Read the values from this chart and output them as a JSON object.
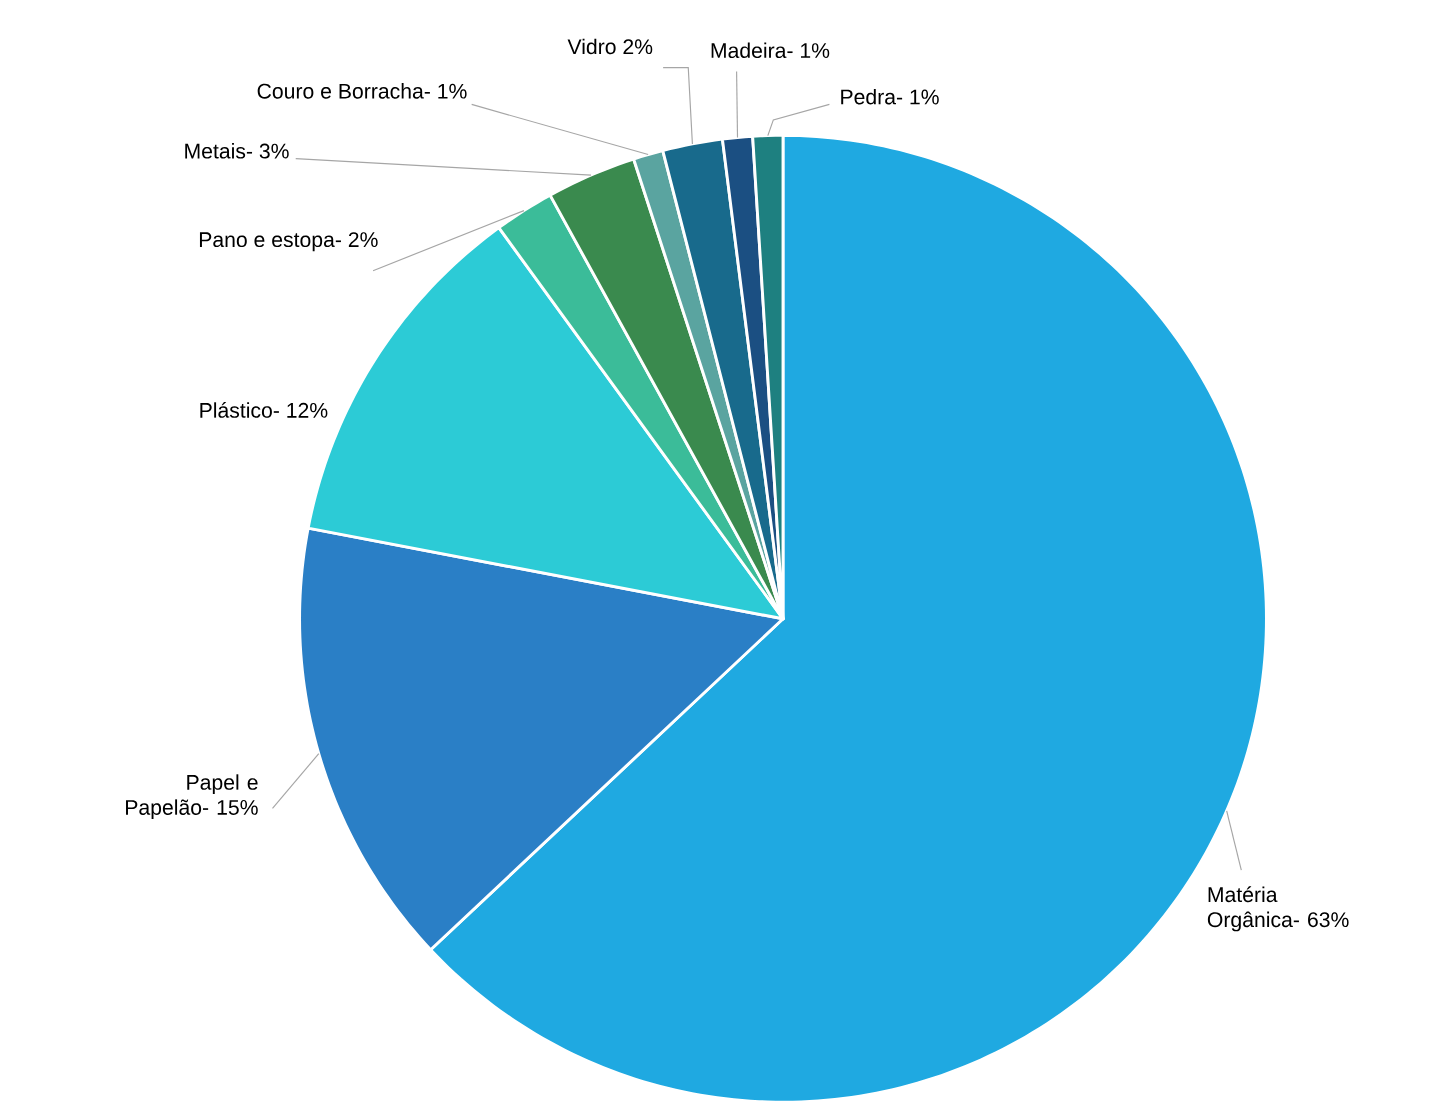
{
  "chart_data": {
    "type": "pie",
    "categories": [
      "Matéria Orgânica- 63%",
      "Papel e Papelão- 15%",
      "Plástico- 12%",
      "Pano e estopa- 2%",
      "Metais- 3%",
      "Couro e Borracha- 1%",
      "Vidro 2%",
      "Madeira- 1%",
      "Pedra- 1%"
    ],
    "values": [
      63,
      15,
      12,
      2,
      3,
      1,
      2,
      1,
      1
    ],
    "colors": [
      "#1fa9e1",
      "#2a7fc6",
      "#2ccbd6",
      "#3bbc99",
      "#3a8a4e",
      "#5aa4a0",
      "#186a8c",
      "#1b4f82",
      "#1e8080"
    ]
  }
}
